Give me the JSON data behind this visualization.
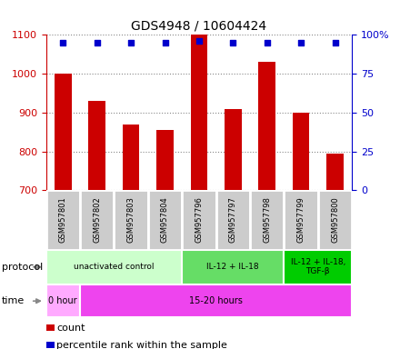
{
  "title": "GDS4948 / 10604424",
  "samples": [
    "GSM957801",
    "GSM957802",
    "GSM957803",
    "GSM957804",
    "GSM957796",
    "GSM957797",
    "GSM957798",
    "GSM957799",
    "GSM957800"
  ],
  "counts": [
    1000,
    930,
    870,
    855,
    1100,
    910,
    1030,
    900,
    795
  ],
  "percentile_ranks": [
    95,
    95,
    95,
    95,
    96,
    95,
    95,
    95,
    95
  ],
  "ylim_left": [
    700,
    1100
  ],
  "ylim_right": [
    0,
    100
  ],
  "yticks_left": [
    700,
    800,
    900,
    1000,
    1100
  ],
  "yticks_right": [
    0,
    25,
    50,
    75,
    100
  ],
  "bar_color": "#cc0000",
  "dot_color": "#0000cc",
  "bar_width": 0.5,
  "protocol_groups": [
    {
      "label": "unactivated control",
      "start": 0,
      "end": 4,
      "color": "#ccffcc"
    },
    {
      "label": "IL-12 + IL-18",
      "start": 4,
      "end": 7,
      "color": "#66dd66"
    },
    {
      "label": "IL-12 + IL-18,\nTGF-β",
      "start": 7,
      "end": 9,
      "color": "#00cc00"
    }
  ],
  "time_groups": [
    {
      "label": "0 hour",
      "start": 0,
      "end": 1,
      "color": "#ffaaff"
    },
    {
      "label": "15-20 hours",
      "start": 1,
      "end": 9,
      "color": "#ee44ee"
    }
  ],
  "left_axis_color": "#cc0000",
  "right_axis_color": "#0000cc",
  "grid_color": "#888888",
  "bg_color": "#ffffff",
  "sample_box_color": "#cccccc",
  "sample_box_border": "#ffffff"
}
